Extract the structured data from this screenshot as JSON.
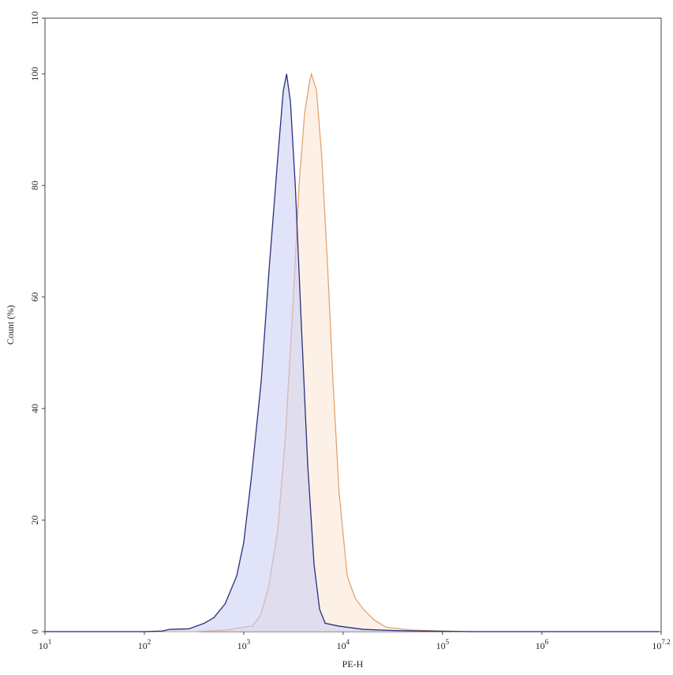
{
  "chart_data": {
    "type": "histogram-overlay",
    "xlabel": "PE-H",
    "ylabel": "Count (%)",
    "xscale": "log",
    "xlim": [
      10,
      15848932
    ],
    "ylim": [
      0,
      110
    ],
    "xticks": [
      {
        "value": 10,
        "label": "10",
        "exponent": "1"
      },
      {
        "value": 100,
        "label": "10",
        "exponent": "2"
      },
      {
        "value": 1000,
        "label": "10",
        "exponent": "3"
      },
      {
        "value": 10000,
        "label": "10",
        "exponent": "4"
      },
      {
        "value": 100000,
        "label": "10",
        "exponent": "5"
      },
      {
        "value": 1000000,
        "label": "10",
        "exponent": "6"
      },
      {
        "value": 15848932,
        "label": "10",
        "exponent": "7.2"
      }
    ],
    "yticks": [
      0,
      20,
      40,
      60,
      80,
      100,
      110
    ],
    "series": [
      {
        "color": "#e3a36f",
        "fill": "#fbe6d3",
        "x": [
          10,
          300,
          700,
          850,
          1230,
          1480,
          1780,
          2190,
          2630,
          3160,
          3600,
          4100,
          4640,
          4800,
          5400,
          6100,
          7000,
          7900,
          9100,
          11000,
          13200,
          16000,
          20800,
          27000,
          47000,
          100000,
          200000,
          15000000
        ],
        "values": [
          0,
          0,
          0.3,
          0.6,
          1,
          3,
          8,
          18,
          35,
          60,
          80,
          93,
          99,
          100,
          97,
          85,
          65,
          45,
          25,
          10,
          6,
          4,
          2,
          0.8,
          0.3,
          0.1,
          0,
          0
        ]
      },
      {
        "color": "#2b2f7a",
        "fill": "#c9ccf4",
        "x": [
          10,
          100,
          150,
          180,
          280,
          400,
          500,
          650,
          850,
          1000,
          1200,
          1500,
          1800,
          2200,
          2500,
          2700,
          2950,
          3300,
          3800,
          4400,
          5100,
          5800,
          6600,
          9000,
          16000,
          33000,
          70000,
          200000,
          15000000
        ],
        "values": [
          0,
          0,
          0.1,
          0.4,
          0.5,
          1.5,
          2.5,
          5,
          10,
          16,
          28,
          45,
          65,
          85,
          97,
          100,
          95,
          80,
          55,
          30,
          12,
          4,
          1.5,
          1,
          0.4,
          0.2,
          0.1,
          0,
          0
        ]
      }
    ]
  }
}
